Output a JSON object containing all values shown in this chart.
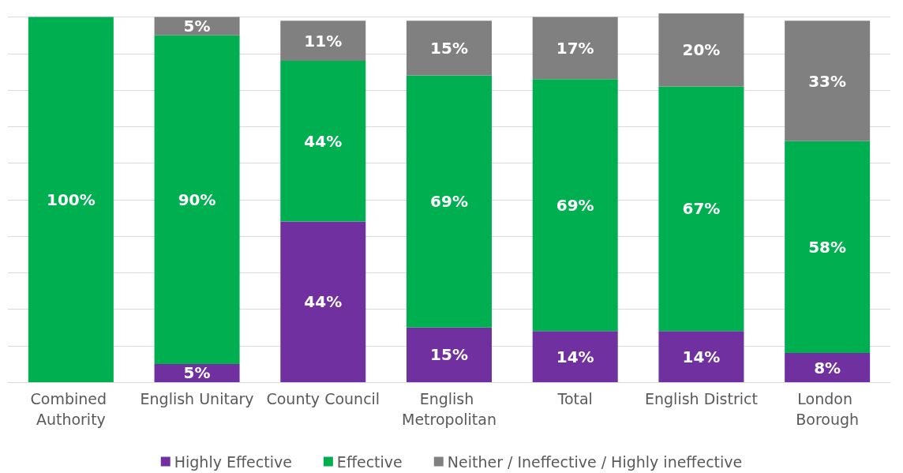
{
  "chart_data": {
    "type": "bar",
    "stacked": true,
    "categories": [
      "Combined Authority",
      "English Unitary",
      "County Council",
      "English Metropolitan",
      "Total",
      "English District",
      "London Borough"
    ],
    "series": [
      {
        "name": "Highly Effective",
        "color": "#7030a0",
        "values": [
          null,
          5,
          44,
          15,
          14,
          14,
          8
        ],
        "value_labels": [
          null,
          "5%",
          "44%",
          "15%",
          "14%",
          "14%",
          "8%"
        ]
      },
      {
        "name": "Effective",
        "color": "#00b050",
        "values": [
          100,
          90,
          44,
          69,
          69,
          67,
          58
        ],
        "value_labels": [
          "100%",
          "90%",
          "44%",
          "69%",
          "69%",
          "67%",
          "58%"
        ]
      },
      {
        "name": "Neither / Ineffective / Highly ineffective",
        "color": "#808080",
        "values": [
          null,
          5,
          11,
          15,
          17,
          20,
          33
        ],
        "value_labels": [
          null,
          "5%",
          "11%",
          "15%",
          "17%",
          "20%",
          "33%"
        ]
      }
    ],
    "ylim": [
      0,
      101
    ],
    "yticks": [
      {
        "value": 0,
        "label": null
      },
      {
        "value": 10,
        "label": null
      },
      {
        "value": 20,
        "label": null
      },
      {
        "value": 30,
        "label": null
      },
      {
        "value": 40,
        "label": null
      },
      {
        "value": 50,
        "label": null
      },
      {
        "value": 60,
        "label": null
      },
      {
        "value": 70,
        "label": null
      },
      {
        "value": 80,
        "label": null
      },
      {
        "value": 90,
        "label": null
      },
      {
        "value": 100,
        "label": null
      }
    ],
    "grid": "y",
    "legend": "bottom",
    "tick_labels": "x"
  }
}
